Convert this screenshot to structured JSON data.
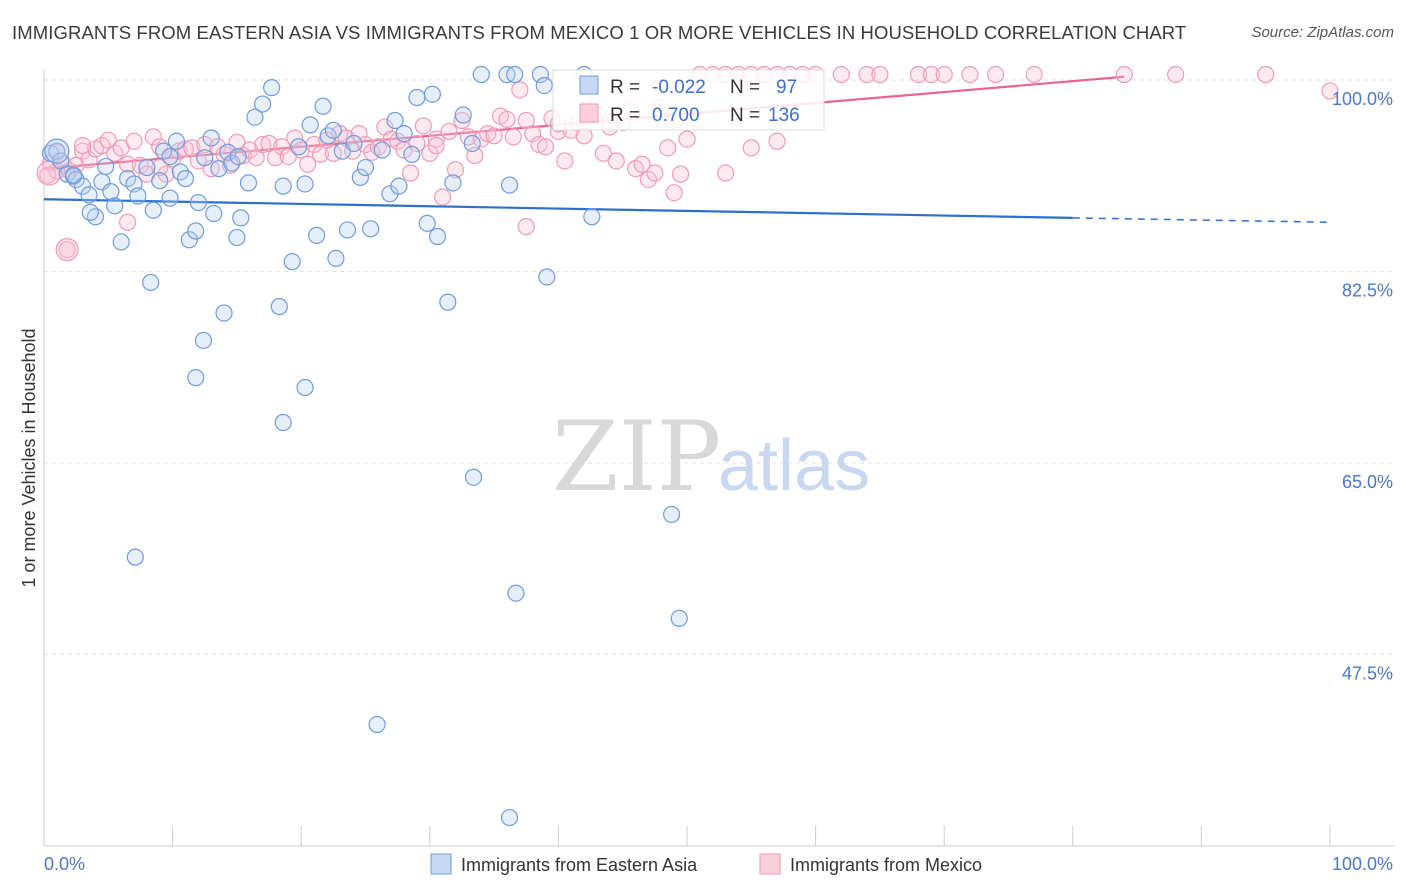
{
  "title": "IMMIGRANTS FROM EASTERN ASIA VS IMMIGRANTS FROM MEXICO 1 OR MORE VEHICLES IN HOUSEHOLD CORRELATION CHART",
  "source": "Source: ZipAtlas.com",
  "watermark": {
    "zip": "ZIP",
    "atlas": "atlas"
  },
  "stats_box": {
    "rows": [
      {
        "r_label": "R =",
        "r_value": "-0.022",
        "n_label": "N =",
        "n_value": "97",
        "color": "#6f9be0"
      },
      {
        "r_label": "R =",
        "r_value": "0.700",
        "n_label": "N =",
        "n_value": "136",
        "color": "#f19bb5"
      }
    ]
  },
  "colors": {
    "blue": "#6f9be0",
    "blue_line": "#2c6fd0",
    "pink": "#f19bb5",
    "pink_line": "#e8658f",
    "tick_text": "#4a78c8"
  },
  "chart_data": {
    "type": "scatter",
    "title": "IMMIGRANTS FROM EASTERN ASIA VS IMMIGRANTS FROM MEXICO 1 OR MORE VEHICLES IN HOUSEHOLD CORRELATION CHART",
    "xlabel": "",
    "ylabel": "1 or more Vehicles in Household",
    "xlim": [
      0,
      100
    ],
    "ylim": [
      30,
      100
    ],
    "x_ticks": [
      "0.0%",
      "100.0%"
    ],
    "y_ticks": [
      {
        "value": 100,
        "label": "100.0%"
      },
      {
        "value": 82.5,
        "label": "82.5%"
      },
      {
        "value": 65,
        "label": "65.0%"
      },
      {
        "value": 47.5,
        "label": "47.5%"
      }
    ],
    "grid": true,
    "legend_position": "bottom",
    "series": [
      {
        "name": "Immigrants from Eastern Asia",
        "color": "#6f9be0",
        "trend": {
          "x": [
            0,
            80
          ],
          "y": [
            89.1,
            87.4
          ],
          "dashed_to": 100,
          "dashed_y": 87.0
        },
        "points": [
          [
            0.5,
            93.3
          ],
          [
            1.0,
            93.5
          ],
          [
            1.3,
            92.6
          ],
          [
            1.8,
            91.4
          ],
          [
            2.3,
            91.2
          ],
          [
            2.5,
            90.9
          ],
          [
            3.0,
            90.3
          ],
          [
            3.5,
            89.5
          ],
          [
            4.0,
            87.5
          ],
          [
            4.5,
            90.7
          ],
          [
            5.2,
            89.8
          ],
          [
            5.5,
            88.5
          ],
          [
            6.0,
            85.2
          ],
          [
            6.5,
            91.0
          ],
          [
            7.0,
            90.5
          ],
          [
            7.3,
            89.4
          ],
          [
            8.0,
            92.0
          ],
          [
            8.3,
            81.5
          ],
          [
            8.5,
            88.1
          ],
          [
            9.0,
            90.8
          ],
          [
            9.3,
            93.5
          ],
          [
            9.8,
            89.2
          ],
          [
            10.3,
            94.4
          ],
          [
            10.6,
            91.6
          ],
          [
            11.0,
            91.0
          ],
          [
            11.3,
            85.4
          ],
          [
            11.8,
            86.2
          ],
          [
            12.0,
            88.8
          ],
          [
            12.5,
            92.9
          ],
          [
            13.0,
            94.7
          ],
          [
            13.2,
            87.8
          ],
          [
            13.6,
            91.9
          ],
          [
            14.0,
            78.7
          ],
          [
            14.3,
            93.4
          ],
          [
            14.6,
            92.4
          ],
          [
            15.0,
            85.6
          ],
          [
            15.3,
            87.4
          ],
          [
            15.9,
            90.6
          ],
          [
            16.4,
            96.6
          ],
          [
            17.0,
            97.8
          ],
          [
            17.7,
            99.3
          ],
          [
            18.3,
            79.3
          ],
          [
            18.6,
            90.3
          ],
          [
            19.3,
            83.4
          ],
          [
            19.8,
            93.9
          ],
          [
            20.3,
            90.5
          ],
          [
            20.7,
            95.9
          ],
          [
            21.2,
            85.8
          ],
          [
            21.7,
            97.6
          ],
          [
            22.1,
            94.9
          ],
          [
            22.5,
            95.4
          ],
          [
            22.7,
            83.7
          ],
          [
            23.2,
            93.5
          ],
          [
            23.6,
            86.3
          ],
          [
            24.1,
            94.2
          ],
          [
            24.6,
            91.1
          ],
          [
            25.0,
            92.0
          ],
          [
            26.3,
            93.6
          ],
          [
            26.9,
            89.6
          ],
          [
            27.3,
            96.3
          ],
          [
            27.6,
            90.3
          ],
          [
            28.0,
            95.1
          ],
          [
            28.6,
            93.2
          ],
          [
            29.0,
            98.4
          ],
          [
            29.8,
            86.9
          ],
          [
            30.2,
            98.7
          ],
          [
            30.6,
            85.7
          ],
          [
            31.4,
            79.7
          ],
          [
            31.8,
            90.6
          ],
          [
            32.6,
            96.8
          ],
          [
            33.3,
            94.2
          ],
          [
            34.0,
            100.5
          ],
          [
            36.0,
            100.5
          ],
          [
            36.6,
            100.5
          ],
          [
            38.6,
            100.5
          ],
          [
            38.9,
            99.5
          ],
          [
            36.2,
            90.4
          ],
          [
            39.1,
            82.0
          ],
          [
            42.0,
            100.5
          ],
          [
            42.6,
            87.5
          ],
          [
            3.6,
            87.9
          ],
          [
            11.8,
            72.8
          ],
          [
            18.6,
            68.7
          ],
          [
            20.3,
            71.9
          ],
          [
            7.1,
            56.4
          ],
          [
            36.7,
            53.1
          ],
          [
            33.4,
            63.7
          ],
          [
            48.8,
            60.3
          ],
          [
            49.4,
            50.8
          ],
          [
            25.9,
            41.1
          ],
          [
            36.2,
            32.6
          ],
          [
            25.4,
            86.4
          ],
          [
            12.4,
            76.2
          ],
          [
            9.8,
            93.0
          ],
          [
            4.8,
            92.1
          ],
          [
            15.1,
            93.0
          ],
          [
            2.3,
            91.3
          ]
        ],
        "sizes": {
          "large_point_x": [
            1.0,
            1.3
          ],
          "large_point_y": [
            93.5,
            92.6
          ]
        }
      },
      {
        "name": "Immigrants from Mexico",
        "color": "#f19bb5",
        "trend": {
          "x": [
            0,
            84
          ],
          "y": [
            91.9,
            100.3
          ]
        },
        "points": [
          [
            0.5,
            92.4
          ],
          [
            1.0,
            93.4
          ],
          [
            1.5,
            92.3
          ],
          [
            2.0,
            91.7
          ],
          [
            2.5,
            92.2
          ],
          [
            3.0,
            93.5
          ],
          [
            3.5,
            92.7
          ],
          [
            4.0,
            93.7
          ],
          [
            4.5,
            94.0
          ],
          [
            5.0,
            94.5
          ],
          [
            5.5,
            93.3
          ],
          [
            6.0,
            93.8
          ],
          [
            6.5,
            92.3
          ],
          [
            7.0,
            94.4
          ],
          [
            7.5,
            92.2
          ],
          [
            8.0,
            91.4
          ],
          [
            8.5,
            94.8
          ],
          [
            9.0,
            93.9
          ],
          [
            9.5,
            91.4
          ],
          [
            10.0,
            92.8
          ],
          [
            10.5,
            93.5
          ],
          [
            11.0,
            93.7
          ],
          [
            11.5,
            93.8
          ],
          [
            12.0,
            92.6
          ],
          [
            12.5,
            94.1
          ],
          [
            13.0,
            91.9
          ],
          [
            13.5,
            93.9
          ],
          [
            14.0,
            93.2
          ],
          [
            14.5,
            92.2
          ],
          [
            15.0,
            94.3
          ],
          [
            15.5,
            93.1
          ],
          [
            16.0,
            93.6
          ],
          [
            16.5,
            92.9
          ],
          [
            17.0,
            94.1
          ],
          [
            17.5,
            94.2
          ],
          [
            18.0,
            92.9
          ],
          [
            18.5,
            93.9
          ],
          [
            19.0,
            93.0
          ],
          [
            19.5,
            94.7
          ],
          [
            20.0,
            93.6
          ],
          [
            20.5,
            92.3
          ],
          [
            21.0,
            94.1
          ],
          [
            21.5,
            93.2
          ],
          [
            22.0,
            94.5
          ],
          [
            22.5,
            93.3
          ],
          [
            23.0,
            95.1
          ],
          [
            23.5,
            94.7
          ],
          [
            24.0,
            93.5
          ],
          [
            24.5,
            95.1
          ],
          [
            25.0,
            94.1
          ],
          [
            25.5,
            93.4
          ],
          [
            26.0,
            93.9
          ],
          [
            26.5,
            95.7
          ],
          [
            27.0,
            94.6
          ],
          [
            27.5,
            94.4
          ],
          [
            28.0,
            93.6
          ],
          [
            28.5,
            91.5
          ],
          [
            29.0,
            94.2
          ],
          [
            29.5,
            95.8
          ],
          [
            30.0,
            93.3
          ],
          [
            30.5,
            94.6
          ],
          [
            31.0,
            89.3
          ],
          [
            31.5,
            95.3
          ],
          [
            32.0,
            91.8
          ],
          [
            32.5,
            96.3
          ],
          [
            33.0,
            94.8
          ],
          [
            33.5,
            93.1
          ],
          [
            34.0,
            94.6
          ],
          [
            34.5,
            95.1
          ],
          [
            35.0,
            94.9
          ],
          [
            35.5,
            96.7
          ],
          [
            36.0,
            96.4
          ],
          [
            36.5,
            94.8
          ],
          [
            37.0,
            99.1
          ],
          [
            37.5,
            96.3
          ],
          [
            38.0,
            95.1
          ],
          [
            38.5,
            94.1
          ],
          [
            39.0,
            93.9
          ],
          [
            39.5,
            96.5
          ],
          [
            40.0,
            95.3
          ],
          [
            40.5,
            92.6
          ],
          [
            41.0,
            95.4
          ],
          [
            41.5,
            96.1
          ],
          [
            42.0,
            94.9
          ],
          [
            42.5,
            97.2
          ],
          [
            43.0,
            96.8
          ],
          [
            43.5,
            93.3
          ],
          [
            44.0,
            96.2
          ],
          [
            44.5,
            92.6
          ],
          [
            45.0,
            96.1
          ],
          [
            45.5,
            97.2
          ],
          [
            46.0,
            91.9
          ],
          [
            46.5,
            92.3
          ],
          [
            47.0,
            90.9
          ],
          [
            47.5,
            91.5
          ],
          [
            48.0,
            97.5
          ],
          [
            48.5,
            93.8
          ],
          [
            49.0,
            89.7
          ],
          [
            49.5,
            91.4
          ],
          [
            50.0,
            94.6
          ],
          [
            51.0,
            100.5
          ],
          [
            52.0,
            100.5
          ],
          [
            53.0,
            100.5
          ],
          [
            54.0,
            100.5
          ],
          [
            55.0,
            100.5
          ],
          [
            56.0,
            100.5
          ],
          [
            57.0,
            100.5
          ],
          [
            58.0,
            100.5
          ],
          [
            59.0,
            100.5
          ],
          [
            60.0,
            100.5
          ],
          [
            62.0,
            100.5
          ],
          [
            64.0,
            100.5
          ],
          [
            65.0,
            100.5
          ],
          [
            68.0,
            100.5
          ],
          [
            69.0,
            100.5
          ],
          [
            70.0,
            100.5
          ],
          [
            72.0,
            100.5
          ],
          [
            74.0,
            100.5
          ],
          [
            77.0,
            100.5
          ],
          [
            84.0,
            100.5
          ],
          [
            88.0,
            100.5
          ],
          [
            95.0,
            100.5
          ],
          [
            100.0,
            99.0
          ],
          [
            53.0,
            91.5
          ],
          [
            55.0,
            93.8
          ],
          [
            57.0,
            94.4
          ],
          [
            6.5,
            87.0
          ],
          [
            1.8,
            84.5
          ],
          [
            37.5,
            86.6
          ],
          [
            30.5,
            94.0
          ],
          [
            1.0,
            91.7
          ],
          [
            0.3,
            91.3
          ],
          [
            3.0,
            94.0
          ],
          [
            9.0,
            92.0
          ],
          [
            40.0,
            96.0
          ],
          [
            44.0,
            95.7
          ]
        ]
      }
    ]
  },
  "legend": {
    "items": [
      {
        "label": "Immigrants from Eastern Asia",
        "color": "#6f9be0"
      },
      {
        "label": "Immigrants from Mexico",
        "color": "#f19bb5"
      }
    ]
  }
}
